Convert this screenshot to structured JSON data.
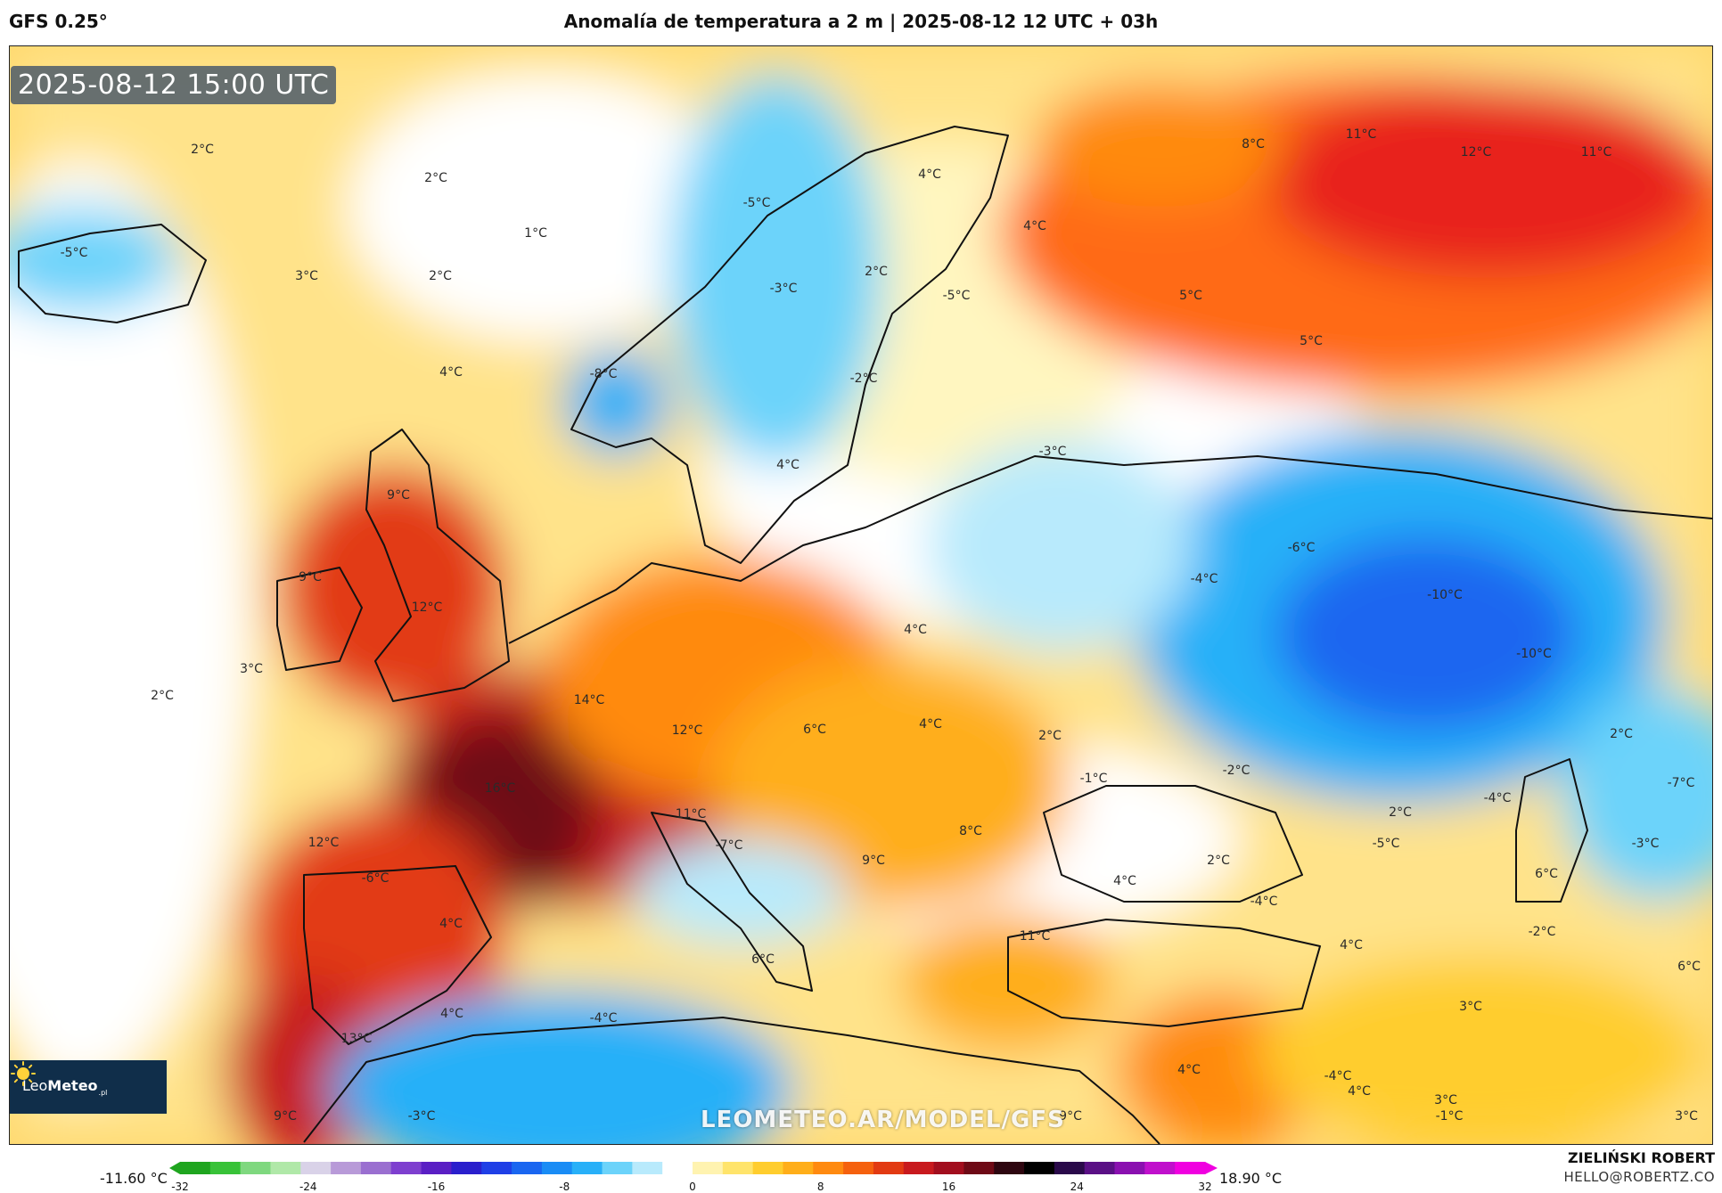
{
  "header": {
    "model": "GFS 0.25°",
    "title": "Anomalía de temperatura a 2 m | 2025-08-12 12 UTC + 03h"
  },
  "map": {
    "timestamp": "2025-08-12 15:00 UTC",
    "watermark": "LEOMETEO.AR/MODEL/GFS",
    "logo": {
      "name": "Leo",
      "name_bold": "Meteo",
      "tld": ".pl"
    },
    "anomaly_labels": [
      {
        "text": "2°C",
        "value": 2
      },
      {
        "text": "2°C",
        "value": 2
      },
      {
        "text": "1°C",
        "value": 1
      },
      {
        "text": "-5°C",
        "value": -5
      },
      {
        "text": "3°C",
        "value": 3
      },
      {
        "text": "2°C",
        "value": 2
      },
      {
        "text": "4°C",
        "value": 4
      },
      {
        "text": "-5°C",
        "value": -5
      },
      {
        "text": "-3°C",
        "value": -3
      },
      {
        "text": "-8°C",
        "value": -8
      },
      {
        "text": "4°C",
        "value": 4
      },
      {
        "text": "4°C",
        "value": 4
      },
      {
        "text": "2°C",
        "value": 2
      },
      {
        "text": "-5°C",
        "value": -5
      },
      {
        "text": "-2°C",
        "value": -2
      },
      {
        "text": "8°C",
        "value": 8
      },
      {
        "text": "11°C",
        "value": 11
      },
      {
        "text": "12°C",
        "value": 12
      },
      {
        "text": "11°C",
        "value": 11
      },
      {
        "text": "5°C",
        "value": 5
      },
      {
        "text": "5°C",
        "value": 5
      },
      {
        "text": "-3°C",
        "value": -3
      },
      {
        "text": "4°C",
        "value": 4
      },
      {
        "text": "9°C",
        "value": 9
      },
      {
        "text": "9°C",
        "value": 9
      },
      {
        "text": "12°C",
        "value": 12
      },
      {
        "text": "3°C",
        "value": 3
      },
      {
        "text": "2°C",
        "value": 2
      },
      {
        "text": "14°C",
        "value": 14
      },
      {
        "text": "16°C",
        "value": 16
      },
      {
        "text": "12°C",
        "value": 12
      },
      {
        "text": "6°C",
        "value": 6
      },
      {
        "text": "4°C",
        "value": 4
      },
      {
        "text": "4°C",
        "value": 4
      },
      {
        "text": "-6°C",
        "value": -6
      },
      {
        "text": "-4°C",
        "value": -4
      },
      {
        "text": "-10°C",
        "value": -10
      },
      {
        "text": "-10°C",
        "value": -10
      },
      {
        "text": "2°C",
        "value": 2
      },
      {
        "text": "-1°C",
        "value": -1
      },
      {
        "text": "-2°C",
        "value": -2
      },
      {
        "text": "2°C",
        "value": 2
      },
      {
        "text": "-7°C",
        "value": -7
      },
      {
        "text": "-4°C",
        "value": -4
      },
      {
        "text": "11°C",
        "value": 11
      },
      {
        "text": "-7°C",
        "value": -7
      },
      {
        "text": "12°C",
        "value": 12
      },
      {
        "text": "-6°C",
        "value": -6
      },
      {
        "text": "4°C",
        "value": 4
      },
      {
        "text": "9°C",
        "value": 9
      },
      {
        "text": "8°C",
        "value": 8
      },
      {
        "text": "4°C",
        "value": 4
      },
      {
        "text": "2°C",
        "value": 2
      },
      {
        "text": "-4°C",
        "value": -4
      },
      {
        "text": "-5°C",
        "value": -5
      },
      {
        "text": "2°C",
        "value": 2
      },
      {
        "text": "-3°C",
        "value": -3
      },
      {
        "text": "6°C",
        "value": 6
      },
      {
        "text": "-2°C",
        "value": -2
      },
      {
        "text": "11°C",
        "value": 11
      },
      {
        "text": "4°C",
        "value": 4
      },
      {
        "text": "6°C",
        "value": 6
      },
      {
        "text": "3°C",
        "value": 3
      },
      {
        "text": "6°C",
        "value": 6
      },
      {
        "text": "4°C",
        "value": 4
      },
      {
        "text": "-4°C",
        "value": -4
      },
      {
        "text": "13°C",
        "value": 13
      },
      {
        "text": "4°C",
        "value": 4
      },
      {
        "text": "9°C",
        "value": 9
      },
      {
        "text": "-3°C",
        "value": -3
      },
      {
        "text": "9°C",
        "value": 9
      },
      {
        "text": "-4°C",
        "value": -4
      },
      {
        "text": "4°C",
        "value": 4
      },
      {
        "text": "3°C",
        "value": 3
      },
      {
        "text": "-1°C",
        "value": -1
      },
      {
        "text": "3°C",
        "value": 3
      }
    ]
  },
  "colorbar": {
    "min_label": "-11.60 °C",
    "max_label": "18.90 °C",
    "ticks": [
      "-32",
      "-24",
      "-16",
      "-8",
      "0",
      "8",
      "16",
      "24",
      "32"
    ],
    "range": [
      -32,
      32
    ],
    "colors": [
      "#1fa51f",
      "#38c238",
      "#7fd87f",
      "#b0e8a8",
      "#d9d2e8",
      "#b89ad8",
      "#9a6fd0",
      "#7e3fcf",
      "#5a1fc4",
      "#2a1fcc",
      "#1f3fe6",
      "#1a66f0",
      "#1a8cf5",
      "#28b0f8",
      "#6cd3fa",
      "#b8eafc",
      "#ffffff",
      "#fff3b0",
      "#ffe46b",
      "#ffcd2e",
      "#ffae1a",
      "#ff8a10",
      "#f5610e",
      "#e23a12",
      "#c81a1e",
      "#a20e1e",
      "#6e0a16",
      "#2e0610",
      "#000000",
      "#2a0a4a",
      "#5a1085",
      "#8a10b0",
      "#c010cc",
      "#f000e0"
    ]
  },
  "footer": {
    "author": "ZIELIŃSKI ROBERT",
    "email": "HELLO@ROBERTZ.CO"
  }
}
